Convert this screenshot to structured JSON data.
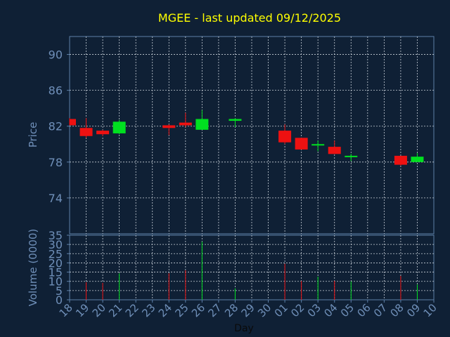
{
  "chart_data": {
    "type": "candlestick",
    "title": "MGEE - last updated 09/12/2025",
    "xlabel": "Day",
    "price_panel": {
      "ylabel": "Price",
      "ylim": [
        70,
        92
      ],
      "yticks": [
        74,
        78,
        82,
        86,
        90
      ]
    },
    "volume_panel": {
      "ylabel": "Volume (0000)",
      "ylim": [
        0,
        35
      ],
      "yticks": [
        0,
        5,
        10,
        15,
        20,
        25,
        30,
        35
      ]
    },
    "x_ticks": [
      "18",
      "19",
      "20",
      "21",
      "22",
      "23",
      "24",
      "25",
      "26",
      "27",
      "28",
      "29",
      "30",
      "01",
      "02",
      "03",
      "04",
      "05",
      "06",
      "07",
      "08",
      "09",
      "10"
    ],
    "grid": true,
    "colors": {
      "background": "#0f2035",
      "frame": "#5c7fa8",
      "tick_text": "#6f8fb8",
      "title": "#ffff00",
      "grid": "#c8d0d8",
      "up": "#00e020",
      "down": "#ee1111"
    },
    "candles": [
      {
        "day": "18",
        "open": 82.8,
        "high": 82.9,
        "low": 82.1,
        "close": 82.1,
        "volume": 0
      },
      {
        "day": "19",
        "open": 81.8,
        "high": 82.9,
        "low": 80.7,
        "close": 80.9,
        "volume": 9.5
      },
      {
        "day": "20",
        "open": 81.5,
        "high": 81.6,
        "low": 80.9,
        "close": 81.1,
        "volume": 9.2
      },
      {
        "day": "21",
        "open": 81.2,
        "high": 82.7,
        "low": 81.1,
        "close": 82.5,
        "volume": 14.3
      },
      {
        "day": "24",
        "open": 82.1,
        "high": 82.2,
        "low": 81.0,
        "close": 81.8,
        "volume": 14.4
      },
      {
        "day": "25",
        "open": 82.4,
        "high": 83.5,
        "low": 81.9,
        "close": 82.1,
        "volume": 16.0
      },
      {
        "day": "26",
        "open": 81.6,
        "high": 83.8,
        "low": 81.6,
        "close": 82.8,
        "volume": 31.5
      },
      {
        "day": "28",
        "open": 82.6,
        "high": 82.9,
        "low": 81.9,
        "close": 82.8,
        "volume": 6.2
      },
      {
        "day": "01",
        "open": 81.5,
        "high": 82.2,
        "low": 80.0,
        "close": 80.2,
        "volume": 19.5
      },
      {
        "day": "02",
        "open": 80.7,
        "high": 80.7,
        "low": 79.4,
        "close": 79.4,
        "volume": 10.2
      },
      {
        "day": "03",
        "open": 79.9,
        "high": 80.4,
        "low": 79.2,
        "close": 80.0,
        "volume": 12.5
      },
      {
        "day": "04",
        "open": 79.7,
        "high": 80.4,
        "low": 78.9,
        "close": 78.9,
        "volume": 10.3
      },
      {
        "day": "05",
        "open": 78.6,
        "high": 78.9,
        "low": 78.1,
        "close": 78.7,
        "volume": 10.0
      },
      {
        "day": "08",
        "open": 78.7,
        "high": 78.7,
        "low": 77.6,
        "close": 77.7,
        "volume": 12.9
      },
      {
        "day": "09",
        "open": 78.0,
        "high": 79.0,
        "low": 78.0,
        "close": 78.6,
        "volume": 8.3
      }
    ]
  }
}
